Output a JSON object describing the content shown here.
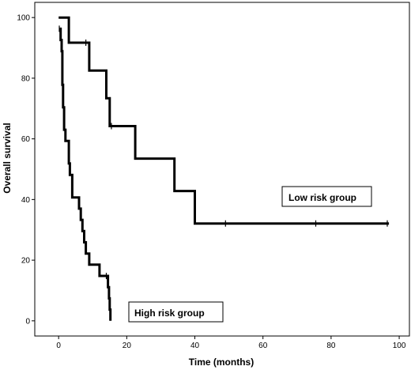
{
  "chart_data": {
    "type": "line",
    "title": "",
    "xlabel": "Time (months)",
    "ylabel": "Overall survival",
    "xlim": [
      -7,
      103
    ],
    "ylim": [
      -5,
      105
    ],
    "xticks": [
      0,
      20,
      40,
      60,
      80,
      100
    ],
    "yticks": [
      0,
      20,
      40,
      60,
      80,
      100
    ],
    "xtick_labels": [
      "0",
      "20",
      "40",
      "60",
      "80",
      "100"
    ],
    "ytick_labels": [
      "0",
      "20",
      "40",
      "60",
      "80",
      "100"
    ],
    "grid": false,
    "series": [
      {
        "name": "Low risk group",
        "step_points": [
          [
            0,
            100
          ],
          [
            3,
            91.7
          ],
          [
            9,
            82.5
          ],
          [
            14,
            73.4
          ],
          [
            15,
            64.2
          ],
          [
            22.5,
            53.5
          ],
          [
            34,
            42.8
          ],
          [
            40,
            32.1
          ],
          [
            97,
            32.1
          ]
        ],
        "censored": [
          [
            8,
            91.7
          ],
          [
            15.5,
            64.2
          ],
          [
            49,
            32.1
          ],
          [
            75.5,
            32.1
          ],
          [
            96.5,
            32.1
          ]
        ]
      },
      {
        "name": "High risk group",
        "step_points": [
          [
            0.3,
            96.3
          ],
          [
            0.6,
            92.6
          ],
          [
            0.9,
            88.9
          ],
          [
            1.1,
            77.8
          ],
          [
            1.3,
            70.4
          ],
          [
            1.6,
            63
          ],
          [
            2,
            59.3
          ],
          [
            3,
            51.9
          ],
          [
            3.3,
            48.1
          ],
          [
            4,
            40.7
          ],
          [
            6,
            37
          ],
          [
            6.5,
            33.3
          ],
          [
            7,
            29.6
          ],
          [
            7.5,
            25.9
          ],
          [
            8,
            22.2
          ],
          [
            9,
            18.5
          ],
          [
            12,
            14.8
          ],
          [
            14.5,
            11.1
          ],
          [
            14.8,
            7.4
          ],
          [
            15,
            3.7
          ],
          [
            15.2,
            0
          ]
        ],
        "censored": [
          [
            0.2,
            96.3
          ],
          [
            14,
            14.8
          ]
        ]
      }
    ]
  }
}
